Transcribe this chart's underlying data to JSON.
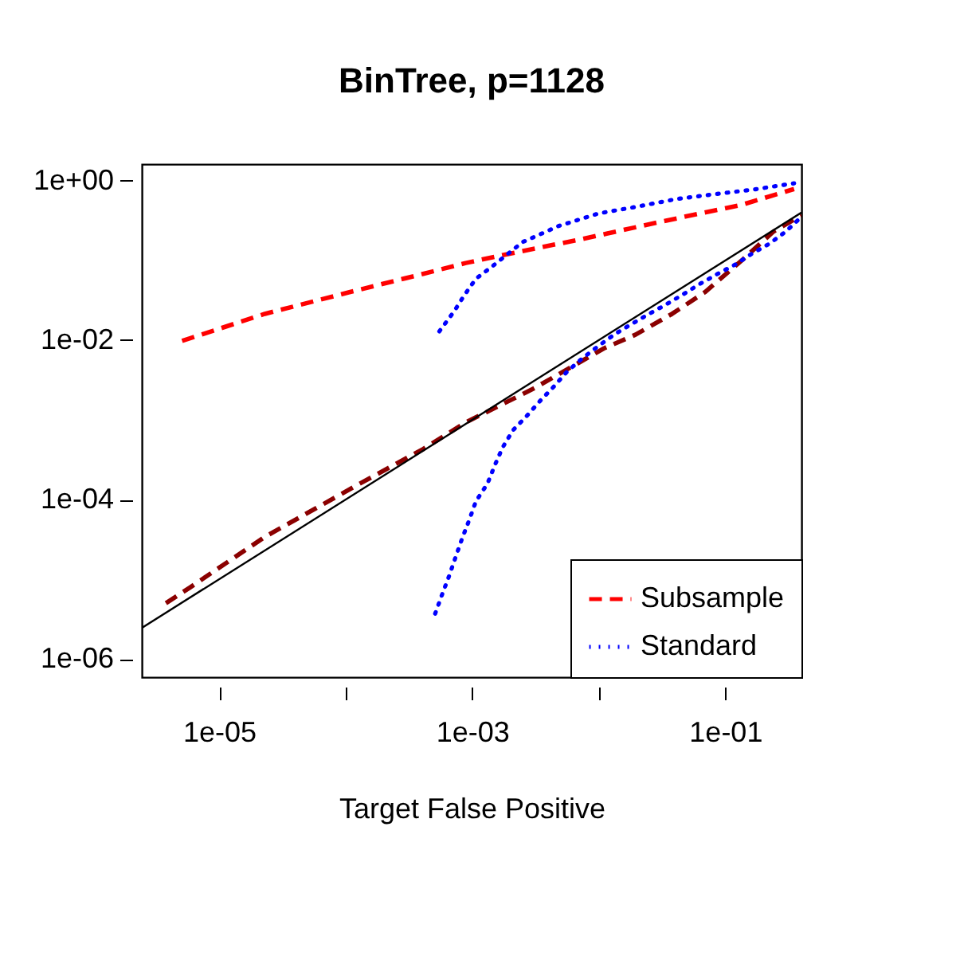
{
  "chart_data": {
    "type": "line",
    "title": "BinTree, p=1128",
    "xlabel": "Target False Positive",
    "log": "xy",
    "grid": false,
    "legend": "bottom right",
    "xlim": [
      2.45e-06,
      0.4
    ],
    "ylim": [
      5.9e-07,
      1.62
    ],
    "xticks": [
      {
        "value": 1e-05,
        "label": "1e-05"
      },
      {
        "value": 0.0001,
        "label": null
      },
      {
        "value": 0.001,
        "label": "1e-03"
      },
      {
        "value": 0.01,
        "label": null
      },
      {
        "value": 0.1,
        "label": "1e-01"
      }
    ],
    "yticks": [
      {
        "value": 1e-06,
        "label": "1e-06"
      },
      {
        "value": 0.0001,
        "label": "1e-04"
      },
      {
        "value": 0.01,
        "label": "1e-02"
      },
      {
        "value": 1,
        "label": "1e+00"
      }
    ],
    "series": [
      {
        "name": "Subsample",
        "color": "#ff0000",
        "line_style": "dashed",
        "x": [
          5.1e-06,
          2.3e-05,
          0.000107,
          0.00041,
          0.00089,
          0.00174,
          0.0074,
          0.032,
          0.135,
          0.35
        ],
        "values": [
          0.0098,
          0.0214,
          0.04,
          0.068,
          0.093,
          0.117,
          0.186,
          0.31,
          0.5,
          0.79
        ]
      },
      {
        "color": "#8b0000",
        "line_style": "dashed",
        "x": [
          3.8e-06,
          5.9e-06,
          2.3e-05,
          0.000129,
          0.00041,
          0.00089,
          0.00174,
          0.0031,
          0.011,
          0.0195,
          0.038,
          0.069,
          0.135,
          0.24,
          0.4
        ],
        "values": [
          5e-06,
          7.9e-06,
          3.4e-05,
          0.000158,
          0.00043,
          0.00093,
          0.00158,
          0.0025,
          0.0079,
          0.0117,
          0.0214,
          0.04,
          0.1,
          0.23,
          0.37
        ]
      },
      {
        "name": "Standard",
        "color": "#0000ff",
        "line_style": "dotted",
        "x": [
          0.00055,
          0.00072,
          0.00087,
          0.00107,
          0.00145,
          0.0025,
          0.0048,
          0.01,
          0.0195,
          0.041,
          0.083,
          0.17,
          0.35
        ],
        "values": [
          0.0129,
          0.023,
          0.037,
          0.059,
          0.085,
          0.17,
          0.27,
          0.39,
          0.47,
          0.59,
          0.68,
          0.78,
          0.93
        ]
      },
      {
        "color": "#0000ff",
        "line_style": "dotted",
        "x": [
          0.00051,
          0.00058,
          0.00066,
          0.00074,
          0.00083,
          0.00095,
          0.00107,
          0.00132,
          0.00151,
          0.00174,
          0.0021,
          0.0027,
          0.0035,
          0.0044,
          0.0056,
          0.0074,
          0.01,
          0.0132,
          0.018,
          0.025,
          0.034,
          0.047,
          0.062,
          0.087,
          0.12,
          0.16,
          0.22,
          0.3,
          0.39
        ],
        "values": [
          3.7e-06,
          6.5e-06,
          1.12e-05,
          1.9e-05,
          3.2e-05,
          5.6e-05,
          9.5e-05,
          0.000158,
          0.00027,
          0.00045,
          0.00074,
          0.00112,
          0.00178,
          0.0026,
          0.004,
          0.0059,
          0.0085,
          0.0117,
          0.0158,
          0.0214,
          0.028,
          0.038,
          0.05,
          0.068,
          0.089,
          0.12,
          0.16,
          0.23,
          0.34
        ]
      },
      {
        "color": "#000000",
        "line_style": "solid",
        "x": [
          2.45e-06,
          0.4
        ],
        "values": [
          2.45e-06,
          0.4
        ]
      }
    ]
  }
}
